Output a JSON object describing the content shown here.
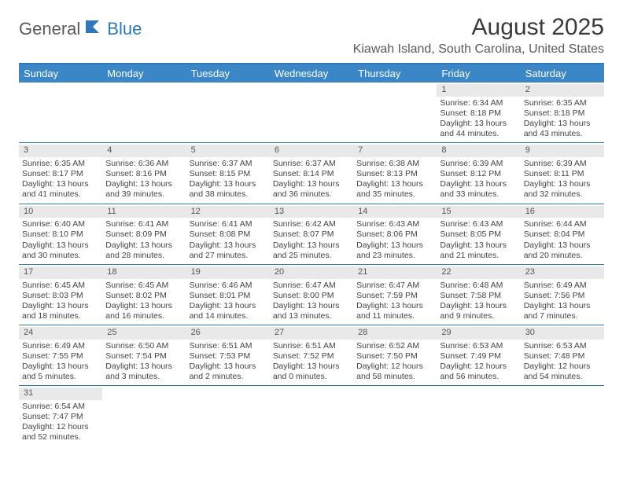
{
  "logo": {
    "general": "General",
    "blue": "Blue"
  },
  "title": "August 2025",
  "location": "Kiawah Island, South Carolina, United States",
  "colors": {
    "header_bg": "#3a86c6",
    "border": "#2f78b9",
    "daynum_bg": "#e9e9e9",
    "text": "#444444"
  },
  "dayNames": [
    "Sunday",
    "Monday",
    "Tuesday",
    "Wednesday",
    "Thursday",
    "Friday",
    "Saturday"
  ],
  "weeks": [
    [
      null,
      null,
      null,
      null,
      null,
      {
        "n": "1",
        "sr": "Sunrise: 6:34 AM",
        "ss": "Sunset: 8:18 PM",
        "d1": "Daylight: 13 hours",
        "d2": "and 44 minutes."
      },
      {
        "n": "2",
        "sr": "Sunrise: 6:35 AM",
        "ss": "Sunset: 8:18 PM",
        "d1": "Daylight: 13 hours",
        "d2": "and 43 minutes."
      }
    ],
    [
      {
        "n": "3",
        "sr": "Sunrise: 6:35 AM",
        "ss": "Sunset: 8:17 PM",
        "d1": "Daylight: 13 hours",
        "d2": "and 41 minutes."
      },
      {
        "n": "4",
        "sr": "Sunrise: 6:36 AM",
        "ss": "Sunset: 8:16 PM",
        "d1": "Daylight: 13 hours",
        "d2": "and 39 minutes."
      },
      {
        "n": "5",
        "sr": "Sunrise: 6:37 AM",
        "ss": "Sunset: 8:15 PM",
        "d1": "Daylight: 13 hours",
        "d2": "and 38 minutes."
      },
      {
        "n": "6",
        "sr": "Sunrise: 6:37 AM",
        "ss": "Sunset: 8:14 PM",
        "d1": "Daylight: 13 hours",
        "d2": "and 36 minutes."
      },
      {
        "n": "7",
        "sr": "Sunrise: 6:38 AM",
        "ss": "Sunset: 8:13 PM",
        "d1": "Daylight: 13 hours",
        "d2": "and 35 minutes."
      },
      {
        "n": "8",
        "sr": "Sunrise: 6:39 AM",
        "ss": "Sunset: 8:12 PM",
        "d1": "Daylight: 13 hours",
        "d2": "and 33 minutes."
      },
      {
        "n": "9",
        "sr": "Sunrise: 6:39 AM",
        "ss": "Sunset: 8:11 PM",
        "d1": "Daylight: 13 hours",
        "d2": "and 32 minutes."
      }
    ],
    [
      {
        "n": "10",
        "sr": "Sunrise: 6:40 AM",
        "ss": "Sunset: 8:10 PM",
        "d1": "Daylight: 13 hours",
        "d2": "and 30 minutes."
      },
      {
        "n": "11",
        "sr": "Sunrise: 6:41 AM",
        "ss": "Sunset: 8:09 PM",
        "d1": "Daylight: 13 hours",
        "d2": "and 28 minutes."
      },
      {
        "n": "12",
        "sr": "Sunrise: 6:41 AM",
        "ss": "Sunset: 8:08 PM",
        "d1": "Daylight: 13 hours",
        "d2": "and 27 minutes."
      },
      {
        "n": "13",
        "sr": "Sunrise: 6:42 AM",
        "ss": "Sunset: 8:07 PM",
        "d1": "Daylight: 13 hours",
        "d2": "and 25 minutes."
      },
      {
        "n": "14",
        "sr": "Sunrise: 6:43 AM",
        "ss": "Sunset: 8:06 PM",
        "d1": "Daylight: 13 hours",
        "d2": "and 23 minutes."
      },
      {
        "n": "15",
        "sr": "Sunrise: 6:43 AM",
        "ss": "Sunset: 8:05 PM",
        "d1": "Daylight: 13 hours",
        "d2": "and 21 minutes."
      },
      {
        "n": "16",
        "sr": "Sunrise: 6:44 AM",
        "ss": "Sunset: 8:04 PM",
        "d1": "Daylight: 13 hours",
        "d2": "and 20 minutes."
      }
    ],
    [
      {
        "n": "17",
        "sr": "Sunrise: 6:45 AM",
        "ss": "Sunset: 8:03 PM",
        "d1": "Daylight: 13 hours",
        "d2": "and 18 minutes."
      },
      {
        "n": "18",
        "sr": "Sunrise: 6:45 AM",
        "ss": "Sunset: 8:02 PM",
        "d1": "Daylight: 13 hours",
        "d2": "and 16 minutes."
      },
      {
        "n": "19",
        "sr": "Sunrise: 6:46 AM",
        "ss": "Sunset: 8:01 PM",
        "d1": "Daylight: 13 hours",
        "d2": "and 14 minutes."
      },
      {
        "n": "20",
        "sr": "Sunrise: 6:47 AM",
        "ss": "Sunset: 8:00 PM",
        "d1": "Daylight: 13 hours",
        "d2": "and 13 minutes."
      },
      {
        "n": "21",
        "sr": "Sunrise: 6:47 AM",
        "ss": "Sunset: 7:59 PM",
        "d1": "Daylight: 13 hours",
        "d2": "and 11 minutes."
      },
      {
        "n": "22",
        "sr": "Sunrise: 6:48 AM",
        "ss": "Sunset: 7:58 PM",
        "d1": "Daylight: 13 hours",
        "d2": "and 9 minutes."
      },
      {
        "n": "23",
        "sr": "Sunrise: 6:49 AM",
        "ss": "Sunset: 7:56 PM",
        "d1": "Daylight: 13 hours",
        "d2": "and 7 minutes."
      }
    ],
    [
      {
        "n": "24",
        "sr": "Sunrise: 6:49 AM",
        "ss": "Sunset: 7:55 PM",
        "d1": "Daylight: 13 hours",
        "d2": "and 5 minutes."
      },
      {
        "n": "25",
        "sr": "Sunrise: 6:50 AM",
        "ss": "Sunset: 7:54 PM",
        "d1": "Daylight: 13 hours",
        "d2": "and 3 minutes."
      },
      {
        "n": "26",
        "sr": "Sunrise: 6:51 AM",
        "ss": "Sunset: 7:53 PM",
        "d1": "Daylight: 13 hours",
        "d2": "and 2 minutes."
      },
      {
        "n": "27",
        "sr": "Sunrise: 6:51 AM",
        "ss": "Sunset: 7:52 PM",
        "d1": "Daylight: 13 hours",
        "d2": "and 0 minutes."
      },
      {
        "n": "28",
        "sr": "Sunrise: 6:52 AM",
        "ss": "Sunset: 7:50 PM",
        "d1": "Daylight: 12 hours",
        "d2": "and 58 minutes."
      },
      {
        "n": "29",
        "sr": "Sunrise: 6:53 AM",
        "ss": "Sunset: 7:49 PM",
        "d1": "Daylight: 12 hours",
        "d2": "and 56 minutes."
      },
      {
        "n": "30",
        "sr": "Sunrise: 6:53 AM",
        "ss": "Sunset: 7:48 PM",
        "d1": "Daylight: 12 hours",
        "d2": "and 54 minutes."
      }
    ],
    [
      {
        "n": "31",
        "sr": "Sunrise: 6:54 AM",
        "ss": "Sunset: 7:47 PM",
        "d1": "Daylight: 12 hours",
        "d2": "and 52 minutes."
      },
      null,
      null,
      null,
      null,
      null,
      null
    ]
  ]
}
